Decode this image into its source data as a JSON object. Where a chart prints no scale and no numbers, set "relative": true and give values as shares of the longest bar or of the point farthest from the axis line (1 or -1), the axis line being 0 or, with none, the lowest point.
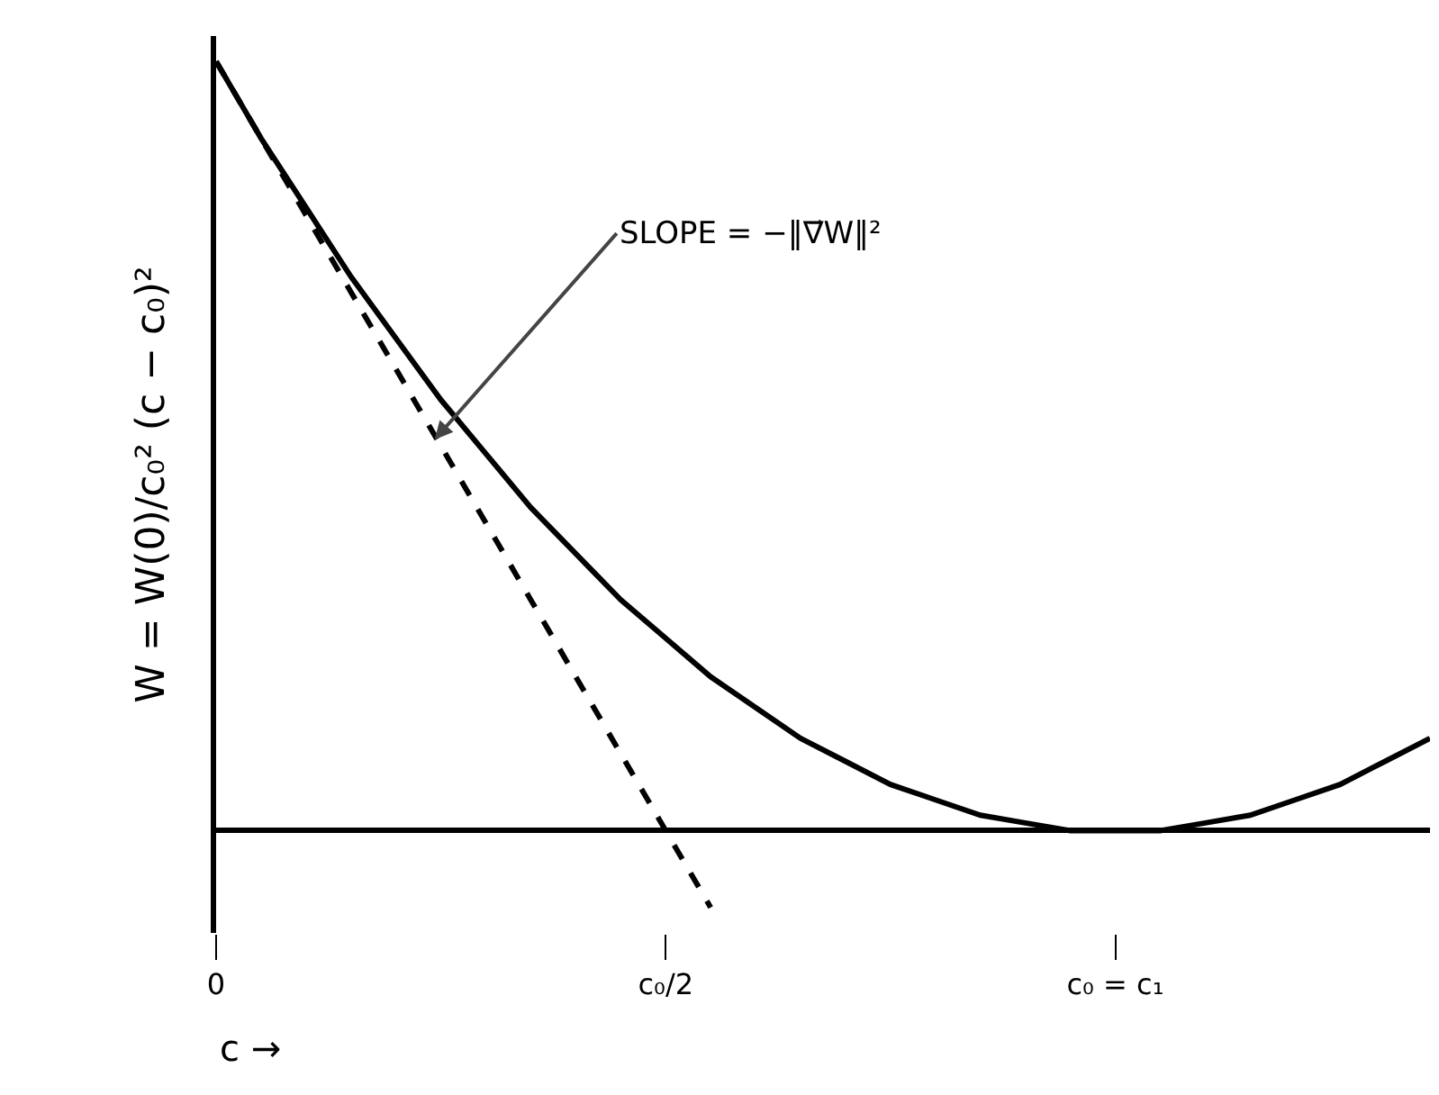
{
  "chart_data": {
    "type": "line",
    "relative": true,
    "xlabel": "c →",
    "ylabel": "W = W(0)/c₀² (c − c₀)²",
    "categories": [
      "0",
      null,
      null,
      null,
      null,
      null,
      null,
      null,
      null,
      null,
      "c₀/2",
      null,
      null,
      null,
      null,
      null,
      null,
      null,
      null,
      null,
      "c₀ = c₁",
      null,
      null,
      null,
      null,
      null,
      null,
      null
    ],
    "grid": false,
    "marker": "none",
    "series": [
      {
        "color": "#000000",
        "line_style": "solid",
        "values": [
          1,
          0.9,
          0.81,
          0.72,
          0.64,
          0.56,
          0.49,
          0.42,
          0.36,
          0.3,
          0.25,
          0.2,
          0.16,
          0.12,
          0.09,
          0.06,
          0.04,
          0.02,
          0.01,
          0,
          0,
          0,
          0.01,
          0.02,
          0.04,
          0.06,
          0.09,
          0.12
        ]
      },
      {
        "color": "#000000",
        "line_style": "dashed",
        "values": [
          1,
          0.9,
          0.8,
          0.7,
          0.6,
          0.5,
          0.4,
          0.3,
          0.2,
          0.1,
          0,
          -0.1,
          null,
          null,
          null,
          null,
          null,
          null,
          null,
          null,
          null,
          null,
          null,
          null,
          null,
          null,
          null,
          null
        ]
      }
    ],
    "annotations": [
      "SLOPE = −‖∇⃗W‖²"
    ]
  }
}
